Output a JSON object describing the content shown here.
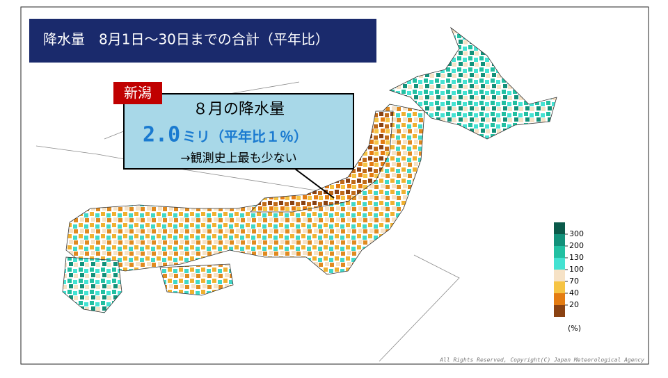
{
  "header": {
    "title": "降水量　8月1日～30日までの合計（平年比）"
  },
  "callout": {
    "place": "新潟",
    "heading": "８月の降水量",
    "amount": "2.0",
    "amount_rest": "ミリ（平年比１％）",
    "note": "→観測史上最も少ない"
  },
  "legend": {
    "ticks": [
      300,
      200,
      130,
      100,
      70,
      40,
      20
    ],
    "colors": [
      "#0b5a4a",
      "#12917a",
      "#22c0a2",
      "#44e2d2",
      "#f6e2c6",
      "#f6c444",
      "#e47c12",
      "#8a4212"
    ],
    "unit": "(%)"
  },
  "footer": {
    "copyright": "All Rights Reserved, Copyright(C) Japan Meteorological Agency"
  }
}
